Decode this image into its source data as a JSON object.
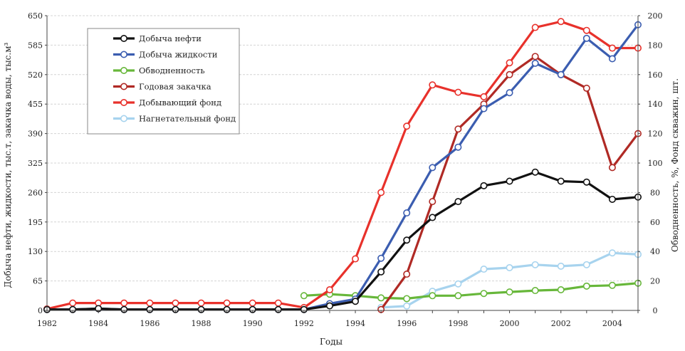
{
  "chart_data": {
    "type": "line",
    "title": "",
    "xlabel": "Годы",
    "ylabel_left": "Добыча нефти, жидкости, тыс.т, закачка воды, тыс.м³",
    "ylabel_right": "Обводненность, %, Фонд скважин, шт.",
    "x": [
      1982,
      1983,
      1984,
      1985,
      1986,
      1987,
      1988,
      1989,
      1990,
      1991,
      1992,
      1993,
      1994,
      1995,
      1996,
      1997,
      1998,
      1999,
      2000,
      2001,
      2002,
      2003,
      2004,
      2005
    ],
    "x_ticks": [
      1982,
      1984,
      1986,
      1988,
      1990,
      1992,
      1994,
      1996,
      1998,
      2000,
      2002,
      2004
    ],
    "ylim_left": [
      0,
      650
    ],
    "ylim_right": [
      0,
      200
    ],
    "y_ticks_left": [
      0,
      65,
      130,
      195,
      260,
      325,
      390,
      455,
      520,
      585,
      650
    ],
    "y_ticks_right": [
      0,
      20,
      40,
      60,
      80,
      100,
      120,
      140,
      160,
      180,
      200
    ],
    "grid": true,
    "legend_position": "top-left",
    "series": [
      {
        "name": "Добыча нефти",
        "axis": "left",
        "color": "#111111",
        "values": [
          2,
          2,
          4,
          2,
          2,
          2,
          2,
          2,
          2,
          2,
          2,
          10,
          20,
          85,
          155,
          205,
          240,
          275,
          285,
          305,
          285,
          283,
          245,
          250
        ]
      },
      {
        "name": "Добыча жидкости",
        "axis": "left",
        "color": "#3b5db0",
        "values": [
          2,
          2,
          4,
          2,
          2,
          2,
          2,
          2,
          2,
          2,
          2,
          15,
          25,
          115,
          215,
          315,
          360,
          445,
          480,
          545,
          520,
          600,
          555,
          630
        ]
      },
      {
        "name": "Обводненность",
        "axis": "right",
        "color": "#67b73a",
        "values": [
          null,
          null,
          null,
          null,
          null,
          null,
          null,
          null,
          null,
          null,
          10,
          11,
          10,
          8.5,
          8,
          10,
          10,
          11.5,
          12.5,
          13.5,
          14,
          16.5,
          17,
          18.5
        ]
      },
      {
        "name": "Годовая закачка",
        "axis": "left",
        "color": "#b02a25",
        "values": [
          null,
          null,
          null,
          null,
          null,
          null,
          null,
          null,
          null,
          null,
          null,
          null,
          null,
          2,
          80,
          240,
          400,
          455,
          520,
          560,
          520,
          490,
          315,
          390
        ]
      },
      {
        "name": "Добывающий фонд",
        "axis": "right",
        "color": "#e8312b",
        "values": [
          1,
          5,
          5,
          5,
          5,
          5,
          5,
          5,
          5,
          5,
          2,
          14,
          35,
          80,
          125,
          153,
          148,
          145,
          168,
          192,
          196,
          190,
          178,
          178
        ]
      },
      {
        "name": "Нагнетательный фонд",
        "axis": "right",
        "color": "#a7d3ee",
        "values": [
          null,
          null,
          null,
          null,
          null,
          null,
          null,
          null,
          null,
          null,
          null,
          null,
          null,
          2,
          3,
          13,
          18,
          28,
          29,
          31,
          30,
          31,
          39,
          38
        ]
      }
    ]
  }
}
